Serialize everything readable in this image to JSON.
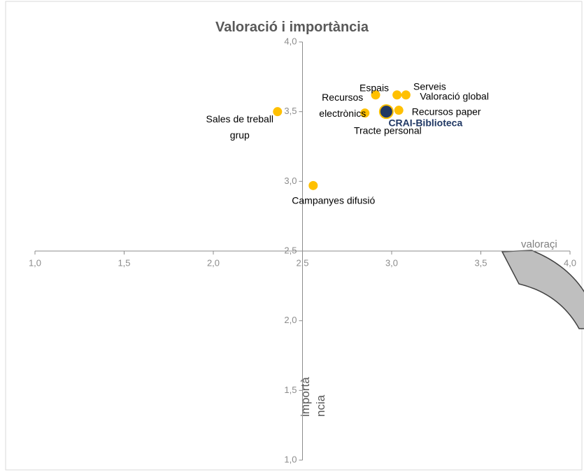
{
  "chart_data": {
    "type": "scatter",
    "title": "Valoració i importància",
    "x_label": "valoraçi",
    "y_label": "importància",
    "xlim": [
      1,
      4
    ],
    "ylim": [
      1,
      4
    ],
    "xticks": [
      {
        "value": 1,
        "label": "1,0"
      },
      {
        "value": 1.5,
        "label": "1,5"
      },
      {
        "value": 2,
        "label": "2,0"
      },
      {
        "value": 2.5,
        "label": "2,5"
      },
      {
        "value": 3,
        "label": "3,0"
      },
      {
        "value": 3.5,
        "label": "3,5"
      },
      {
        "value": 4,
        "label": "4,0"
      }
    ],
    "yticks": [
      {
        "value": 1,
        "label": "1,0"
      },
      {
        "value": 1.5,
        "label": "1,5"
      },
      {
        "value": 2,
        "label": "2,0"
      },
      {
        "value": 2.5,
        "label": "2,5"
      },
      {
        "value": 3,
        "label": "3,0"
      },
      {
        "value": 3.5,
        "label": "3,5"
      },
      {
        "value": 4,
        "label": "4,0"
      }
    ],
    "axis_cross": [
      2.5,
      2.5
    ],
    "series": [
      {
        "color": "#ffc000",
        "x": [
          2.36,
          2.56,
          2.91,
          3.08,
          3.03,
          2.85,
          3.04,
          2.97
        ],
        "y": [
          3.5,
          2.97,
          3.62,
          3.62,
          3.62,
          3.49,
          3.51,
          3.5
        ],
        "labels": [
          "Sales de treball grup",
          "Campanyes difusió",
          "Espais",
          "Serveis",
          "Valoració global",
          "Recursos electrònics",
          "Recursos paper",
          "Tracte personal"
        ]
      },
      {
        "color": "#203864",
        "x": [
          2.97
        ],
        "y": [
          3.5
        ],
        "labels": [
          "CRAI-Biblioteca"
        ]
      }
    ]
  }
}
